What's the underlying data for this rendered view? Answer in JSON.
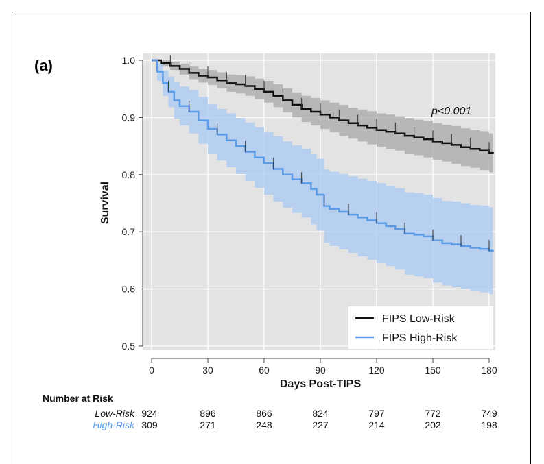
{
  "panel_label": "(a)",
  "p_value": "p<0.001",
  "colors": {
    "low": "#111111",
    "high": "#5B9BE8",
    "low_band": "#a8a8a8",
    "high_band": "#a9c9f3",
    "panel_bg": "#e3e3e3"
  },
  "risk_table": {
    "title": "Number at Risk",
    "rows": [
      {
        "label": "Low-Risk",
        "color": "#111111",
        "values": [
          "924",
          "896",
          "866",
          "824",
          "797",
          "772",
          "749"
        ]
      },
      {
        "label": "High-Risk",
        "color": "#5B9BE8",
        "values": [
          "309",
          "271",
          "248",
          "227",
          "214",
          "202",
          "198"
        ]
      }
    ]
  },
  "chart_data": {
    "type": "line",
    "title": "",
    "xlabel": "Days Post-TIPS",
    "ylabel": "Survival",
    "xlim": [
      0,
      182
    ],
    "ylim": [
      0.5,
      1.0
    ],
    "xticks": [
      "0",
      "30",
      "60",
      "90",
      "120",
      "150",
      "180"
    ],
    "yticks": [
      "0.5",
      "0.6",
      "0.7",
      "0.8",
      "0.9",
      "1.0"
    ],
    "grid": true,
    "legend_position": "bottom-right",
    "series": [
      {
        "name": "FIPS Low-Risk",
        "x": [
          0,
          5,
          10,
          15,
          20,
          25,
          30,
          35,
          40,
          45,
          50,
          55,
          60,
          65,
          70,
          75,
          80,
          85,
          90,
          95,
          100,
          105,
          110,
          115,
          120,
          125,
          130,
          135,
          140,
          145,
          150,
          155,
          160,
          165,
          170,
          175,
          180,
          182
        ],
        "y": [
          1.0,
          0.995,
          0.99,
          0.985,
          0.978,
          0.973,
          0.97,
          0.965,
          0.96,
          0.958,
          0.955,
          0.95,
          0.945,
          0.938,
          0.93,
          0.922,
          0.915,
          0.91,
          0.905,
          0.9,
          0.895,
          0.89,
          0.886,
          0.882,
          0.878,
          0.875,
          0.872,
          0.868,
          0.865,
          0.862,
          0.858,
          0.855,
          0.852,
          0.848,
          0.845,
          0.842,
          0.838,
          0.836
        ],
        "lower": [
          1.0,
          0.99,
          0.983,
          0.975,
          0.967,
          0.961,
          0.957,
          0.951,
          0.945,
          0.942,
          0.938,
          0.932,
          0.926,
          0.918,
          0.909,
          0.9,
          0.892,
          0.886,
          0.88,
          0.874,
          0.868,
          0.863,
          0.858,
          0.853,
          0.849,
          0.845,
          0.842,
          0.837,
          0.834,
          0.83,
          0.826,
          0.823,
          0.819,
          0.815,
          0.812,
          0.808,
          0.804,
          0.802
        ],
        "upper": [
          1.0,
          1.0,
          0.997,
          0.994,
          0.989,
          0.985,
          0.983,
          0.979,
          0.975,
          0.974,
          0.972,
          0.968,
          0.964,
          0.958,
          0.951,
          0.944,
          0.938,
          0.934,
          0.93,
          0.926,
          0.922,
          0.917,
          0.914,
          0.911,
          0.907,
          0.905,
          0.902,
          0.899,
          0.896,
          0.894,
          0.89,
          0.887,
          0.885,
          0.881,
          0.878,
          0.876,
          0.872,
          0.87
        ]
      },
      {
        "name": "FIPS High-Risk",
        "x": [
          0,
          3,
          6,
          9,
          12,
          15,
          20,
          25,
          30,
          35,
          40,
          45,
          50,
          55,
          60,
          65,
          70,
          75,
          80,
          85,
          88,
          92,
          95,
          100,
          105,
          110,
          115,
          120,
          125,
          130,
          135,
          140,
          145,
          150,
          155,
          160,
          165,
          170,
          175,
          180,
          182
        ],
        "y": [
          1.0,
          0.98,
          0.96,
          0.945,
          0.93,
          0.92,
          0.91,
          0.895,
          0.88,
          0.87,
          0.86,
          0.85,
          0.84,
          0.83,
          0.82,
          0.81,
          0.8,
          0.792,
          0.785,
          0.775,
          0.765,
          0.745,
          0.74,
          0.735,
          0.73,
          0.725,
          0.72,
          0.715,
          0.71,
          0.705,
          0.697,
          0.695,
          0.692,
          0.685,
          0.68,
          0.678,
          0.675,
          0.672,
          0.67,
          0.667,
          0.665
        ],
        "lower": [
          1.0,
          0.964,
          0.938,
          0.918,
          0.898,
          0.886,
          0.872,
          0.854,
          0.837,
          0.825,
          0.813,
          0.801,
          0.789,
          0.777,
          0.765,
          0.753,
          0.742,
          0.733,
          0.725,
          0.713,
          0.702,
          0.681,
          0.675,
          0.669,
          0.663,
          0.657,
          0.651,
          0.645,
          0.64,
          0.634,
          0.625,
          0.622,
          0.619,
          0.611,
          0.606,
          0.603,
          0.6,
          0.597,
          0.594,
          0.591,
          0.589
        ],
        "upper": [
          1.0,
          0.995,
          0.982,
          0.972,
          0.962,
          0.954,
          0.948,
          0.936,
          0.923,
          0.915,
          0.907,
          0.899,
          0.891,
          0.883,
          0.875,
          0.867,
          0.858,
          0.851,
          0.845,
          0.837,
          0.828,
          0.809,
          0.805,
          0.801,
          0.797,
          0.793,
          0.789,
          0.785,
          0.78,
          0.776,
          0.769,
          0.768,
          0.765,
          0.759,
          0.754,
          0.753,
          0.75,
          0.747,
          0.746,
          0.743,
          0.741
        ]
      }
    ]
  }
}
